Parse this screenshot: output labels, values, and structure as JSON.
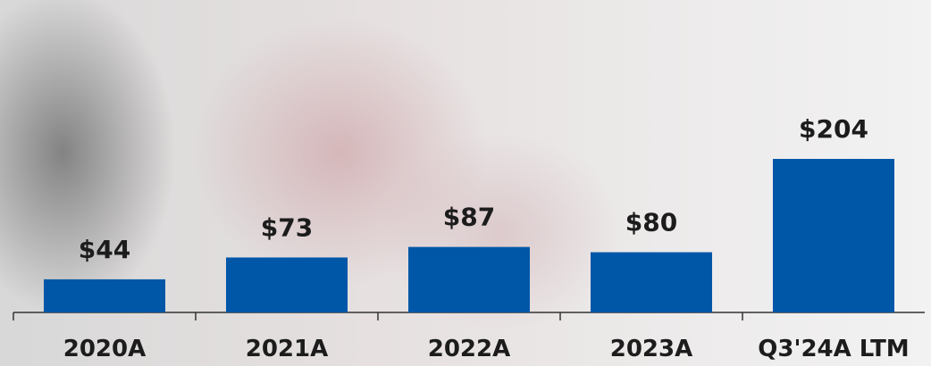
{
  "chart_data": {
    "type": "bar",
    "categories": [
      "2020A",
      "2021A",
      "2022A",
      "2023A",
      "Q3'24A LTM"
    ],
    "values": [
      44,
      73,
      87,
      80,
      204
    ],
    "value_labels": [
      "$44",
      "$73",
      "$87",
      "$80",
      "$204"
    ],
    "color": "#0057a8"
  }
}
